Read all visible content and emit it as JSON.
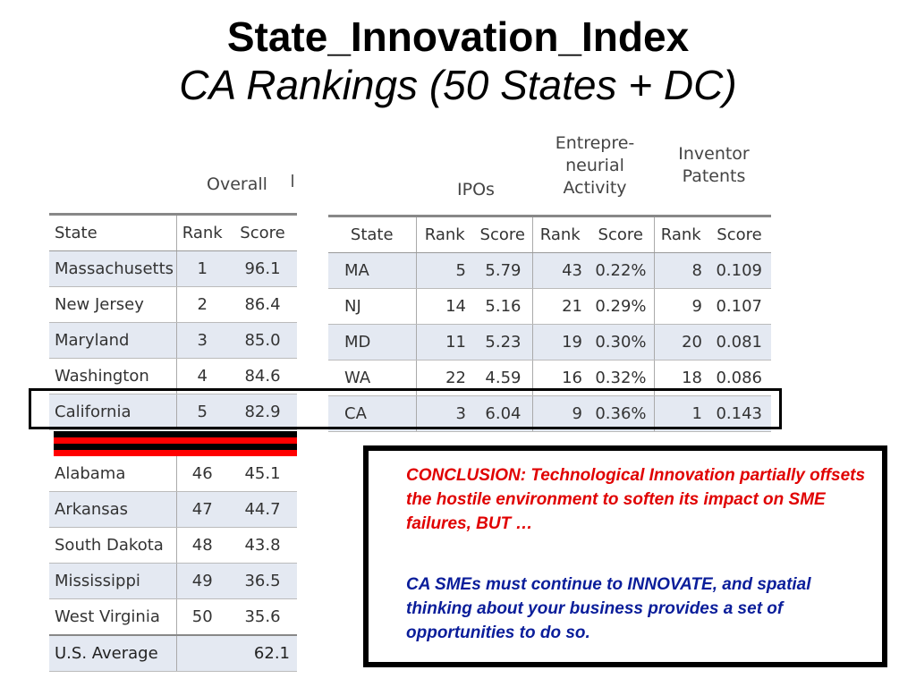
{
  "title": "State_Innovation_Index",
  "subtitle": "CA Rankings (50 States + DC)",
  "left_table": {
    "group_header": "Overall",
    "columns": [
      "State",
      "Rank",
      "Score"
    ],
    "top_rows": [
      {
        "state": "Massachusetts",
        "rank": "1",
        "score": "96.1"
      },
      {
        "state": "New Jersey",
        "rank": "2",
        "score": "86.4"
      },
      {
        "state": "Maryland",
        "rank": "3",
        "score": "85.0"
      },
      {
        "state": "Washington",
        "rank": "4",
        "score": "84.6"
      },
      {
        "state": "California",
        "rank": "5",
        "score": "82.9"
      }
    ],
    "bottom_rows": [
      {
        "state": "Alabama",
        "rank": "46",
        "score": "45.1"
      },
      {
        "state": "Arkansas",
        "rank": "47",
        "score": "44.7"
      },
      {
        "state": "South Dakota",
        "rank": "48",
        "score": "43.8"
      },
      {
        "state": "Mississippi",
        "rank": "49",
        "score": "36.5"
      },
      {
        "state": "West Virginia",
        "rank": "50",
        "score": "35.6"
      }
    ],
    "average": {
      "label": "U.S. Average",
      "score": "62.1"
    }
  },
  "right_table": {
    "group_headers": {
      "ipos": "IPOs",
      "entrepreneurial": "Entrepre-\nneurial\nActivity",
      "patents": "Inventor\nPatents"
    },
    "columns": [
      "State",
      "Rank",
      "Score",
      "Rank",
      "Score",
      "Rank",
      "Score"
    ],
    "rows": [
      {
        "state": "MA",
        "ipo_rank": "5",
        "ipo_score": "5.79",
        "ent_rank": "43",
        "ent_score": "0.22%",
        "pat_rank": "8",
        "pat_score": "0.109"
      },
      {
        "state": "NJ",
        "ipo_rank": "14",
        "ipo_score": "5.16",
        "ent_rank": "21",
        "ent_score": "0.29%",
        "pat_rank": "9",
        "pat_score": "0.107"
      },
      {
        "state": "MD",
        "ipo_rank": "11",
        "ipo_score": "5.23",
        "ent_rank": "19",
        "ent_score": "0.30%",
        "pat_rank": "20",
        "pat_score": "0.081"
      },
      {
        "state": "WA",
        "ipo_rank": "22",
        "ipo_score": "4.59",
        "ent_rank": "16",
        "ent_score": "0.32%",
        "pat_rank": "18",
        "pat_score": "0.086"
      },
      {
        "state": "CA",
        "ipo_rank": "3",
        "ipo_score": "6.04",
        "ent_rank": "9",
        "ent_score": "0.36%",
        "pat_rank": "1",
        "pat_score": "0.143"
      }
    ]
  },
  "conclusion": {
    "paragraph1": "CONCLUSION:  Technological Innovation partially offsets the hostile environment to soften its impact on SME failures, BUT …",
    "paragraph2": "CA SMEs must continue to INNOVATE, and spatial thinking about your business provides a set of opportunities to do so."
  },
  "colors": {
    "conclusion_red": "#e00000",
    "conclusion_blue": "#0a1d9a",
    "row_shade": "#e4e9f2",
    "stripe_red": "#ff0000",
    "stripe_black": "#000000"
  }
}
